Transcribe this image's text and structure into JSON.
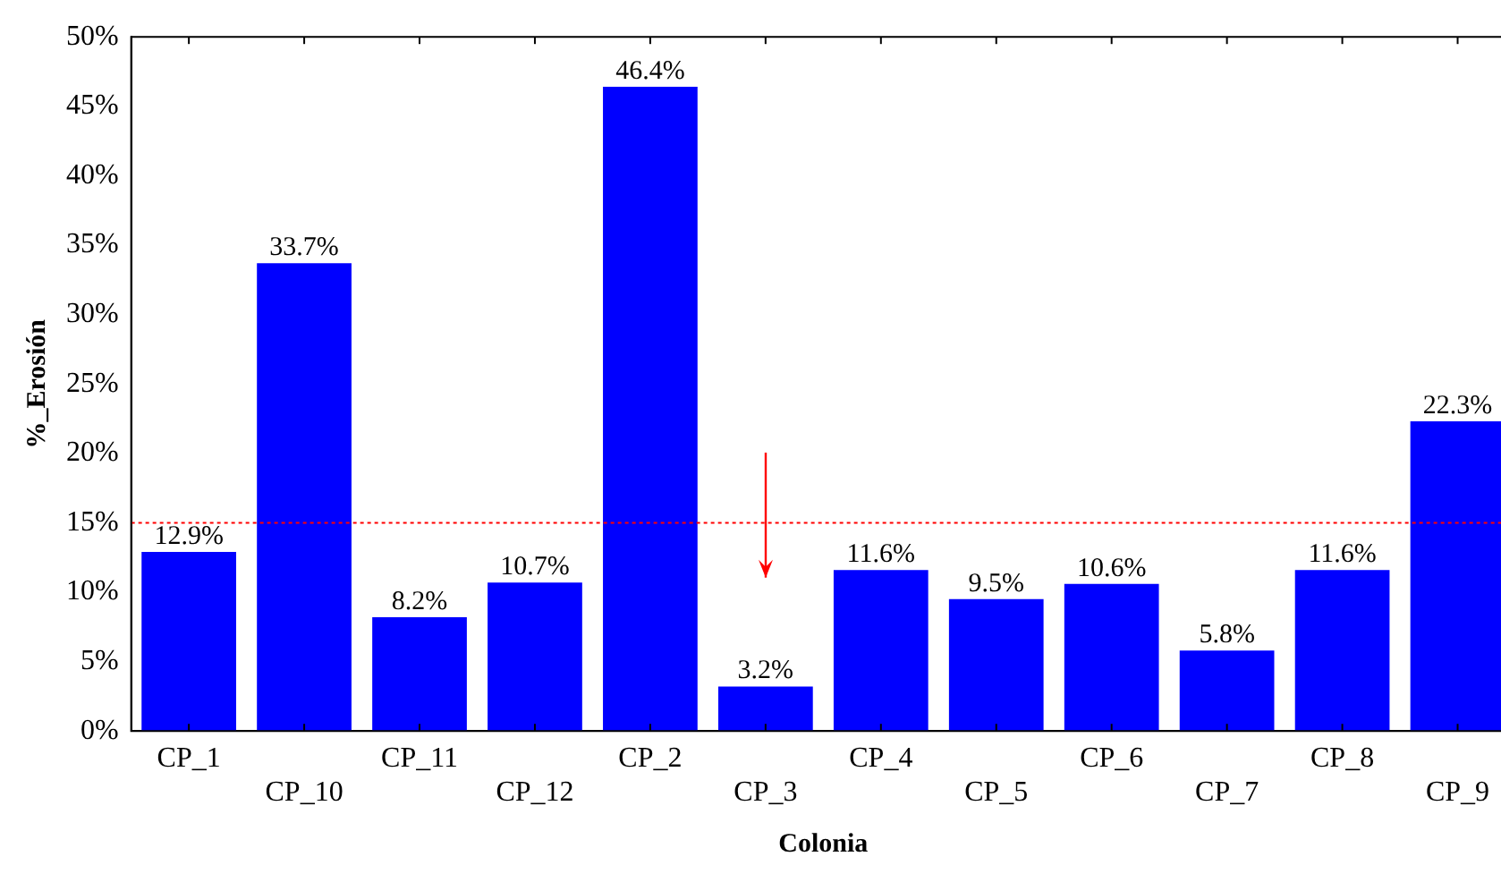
{
  "chart_data": {
    "type": "bar",
    "xlabel": "Colonia",
    "ylabel": "%_Erosión",
    "categories": [
      "CP_1",
      "CP_10",
      "CP_11",
      "CP_12",
      "CP_2",
      "CP_3",
      "CP_4",
      "CP_5",
      "CP_6",
      "CP_7",
      "CP_8",
      "CP_9"
    ],
    "values": [
      12.9,
      33.7,
      8.2,
      10.7,
      46.4,
      3.2,
      11.6,
      9.5,
      10.6,
      5.8,
      11.6,
      22.3
    ],
    "value_labels": [
      "12.9%",
      "33.7%",
      "8.2%",
      "10.7%",
      "46.4%",
      "3.2%",
      "11.6%",
      "9.5%",
      "10.6%",
      "5.8%",
      "11.6%",
      "22.3%"
    ],
    "color": "#0000ff",
    "ylim": [
      0,
      50
    ],
    "yticks": [
      {
        "value": 0,
        "label": "0%"
      },
      {
        "value": 5,
        "label": "5%"
      },
      {
        "value": 10,
        "label": "10%"
      },
      {
        "value": 15,
        "label": "15%"
      },
      {
        "value": 20,
        "label": "20%"
      },
      {
        "value": 25,
        "label": "25%"
      },
      {
        "value": 30,
        "label": "30%"
      },
      {
        "value": 35,
        "label": "35%"
      },
      {
        "value": 40,
        "label": "40%"
      },
      {
        "value": 45,
        "label": "45%"
      },
      {
        "value": 50,
        "label": "50%"
      }
    ],
    "ref_lines": [
      {
        "axis": "y",
        "value": 15,
        "color": "#ff0000",
        "line_style": "dotted"
      }
    ],
    "grid": false,
    "legend": false
  }
}
